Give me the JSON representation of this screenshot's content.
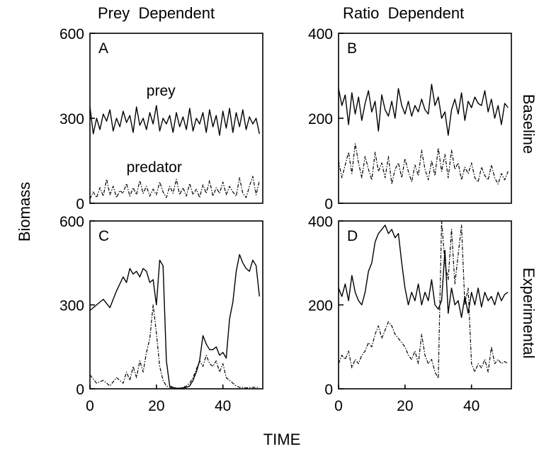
{
  "figure": {
    "column_titles": [
      "Prey  Dependent",
      "Ratio  Dependent"
    ],
    "row_labels": [
      "Baseline",
      "Experimental"
    ],
    "ylabel": "Biomass",
    "xlabel": "TIME"
  },
  "chart_data": [
    {
      "type": "line",
      "panel": "A",
      "ylim": [
        0,
        600
      ],
      "xlim": [
        0,
        52
      ],
      "yticks": [
        "0",
        "300",
        "600"
      ],
      "xticks": [],
      "annotations": [
        "prey",
        "predator"
      ],
      "series": [
        {
          "name": "prey",
          "style": "solid",
          "x": [
            0,
            1,
            2,
            3,
            4,
            5,
            6,
            7,
            8,
            9,
            10,
            11,
            12,
            13,
            14,
            15,
            16,
            17,
            18,
            19,
            20,
            21,
            22,
            23,
            24,
            25,
            26,
            27,
            28,
            29,
            30,
            31,
            32,
            33,
            34,
            35,
            36,
            37,
            38,
            39,
            40,
            41,
            42,
            43,
            44,
            45,
            46,
            47,
            48,
            49,
            50,
            51
          ],
          "y": [
            340,
            245,
            300,
            260,
            315,
            290,
            330,
            255,
            300,
            270,
            325,
            285,
            310,
            250,
            340,
            275,
            300,
            260,
            320,
            280,
            345,
            255,
            300,
            280,
            310,
            250,
            320,
            270,
            305,
            260,
            335,
            255,
            300,
            280,
            320,
            250,
            330,
            270,
            310,
            240,
            325,
            265,
            335,
            250,
            320,
            270,
            330,
            260,
            305,
            280,
            300,
            245
          ]
        },
        {
          "name": "predator",
          "style": "dash-dot",
          "x": [
            0,
            1,
            2,
            3,
            4,
            5,
            6,
            7,
            8,
            9,
            10,
            11,
            12,
            13,
            14,
            15,
            16,
            17,
            18,
            19,
            20,
            21,
            22,
            23,
            24,
            25,
            26,
            27,
            28,
            29,
            30,
            31,
            32,
            33,
            34,
            35,
            36,
            37,
            38,
            39,
            40,
            41,
            42,
            43,
            44,
            45,
            46,
            47,
            48,
            49,
            50,
            51
          ],
          "y": [
            15,
            40,
            20,
            55,
            25,
            85,
            30,
            60,
            20,
            45,
            35,
            70,
            25,
            55,
            30,
            80,
            35,
            60,
            25,
            50,
            30,
            75,
            40,
            20,
            60,
            35,
            85,
            30,
            55,
            25,
            70,
            30,
            50,
            20,
            65,
            35,
            80,
            25,
            55,
            35,
            75,
            30,
            60,
            40,
            25,
            90,
            35,
            20,
            60,
            95,
            30,
            80
          ]
        }
      ]
    },
    {
      "type": "line",
      "panel": "B",
      "ylim": [
        0,
        400
      ],
      "xlim": [
        0,
        52
      ],
      "yticks": [
        "0",
        "200",
        "400"
      ],
      "xticks": [],
      "series": [
        {
          "name": "prey",
          "style": "solid",
          "x": [
            0,
            1,
            2,
            3,
            4,
            5,
            6,
            7,
            8,
            9,
            10,
            11,
            12,
            13,
            14,
            15,
            16,
            17,
            18,
            19,
            20,
            21,
            22,
            23,
            24,
            25,
            26,
            27,
            28,
            29,
            30,
            31,
            32,
            33,
            34,
            35,
            36,
            37,
            38,
            39,
            40,
            41,
            42,
            43,
            44,
            45,
            46,
            47,
            48,
            49,
            50,
            51
          ],
          "y": [
            270,
            230,
            255,
            185,
            260,
            210,
            250,
            195,
            235,
            265,
            215,
            240,
            170,
            255,
            220,
            205,
            240,
            200,
            270,
            230,
            210,
            240,
            205,
            230,
            215,
            245,
            220,
            210,
            280,
            230,
            250,
            200,
            215,
            160,
            220,
            245,
            210,
            260,
            195,
            240,
            225,
            250,
            235,
            230,
            265,
            215,
            245,
            200,
            230,
            185,
            235,
            225
          ]
        },
        {
          "name": "predator",
          "style": "dash-dot",
          "x": [
            0,
            1,
            2,
            3,
            4,
            5,
            6,
            7,
            8,
            9,
            10,
            11,
            12,
            13,
            14,
            15,
            16,
            17,
            18,
            19,
            20,
            21,
            22,
            23,
            24,
            25,
            26,
            27,
            28,
            29,
            30,
            31,
            32,
            33,
            34,
            35,
            36,
            37,
            38,
            39,
            40,
            41,
            42,
            43,
            44,
            45,
            46,
            47,
            48,
            49,
            50,
            51
          ],
          "y": [
            100,
            60,
            90,
            120,
            70,
            140,
            95,
            60,
            110,
            80,
            55,
            120,
            75,
            95,
            60,
            110,
            45,
            80,
            95,
            60,
            105,
            75,
            50,
            90,
            65,
            125,
            80,
            55,
            100,
            65,
            130,
            75,
            115,
            60,
            125,
            80,
            95,
            55,
            85,
            70,
            95,
            60,
            50,
            85,
            65,
            55,
            90,
            60,
            45,
            70,
            55,
            75
          ]
        }
      ]
    },
    {
      "type": "line",
      "panel": "C",
      "ylim": [
        0,
        600
      ],
      "xlim": [
        0,
        52
      ],
      "yticks": [
        "0",
        "300",
        "600"
      ],
      "xticks": [
        "0",
        "20",
        "40"
      ],
      "series": [
        {
          "name": "prey",
          "style": "solid",
          "x": [
            0,
            2,
            4,
            6,
            8,
            10,
            11,
            12,
            13,
            14,
            15,
            16,
            17,
            18,
            19,
            20,
            21,
            22,
            23,
            24,
            25,
            26,
            27,
            28,
            29,
            30,
            31,
            32,
            33,
            34,
            35,
            36,
            37,
            38,
            39,
            40,
            41,
            42,
            43,
            44,
            45,
            46,
            47,
            48,
            49,
            50,
            51
          ],
          "y": [
            280,
            300,
            320,
            290,
            350,
            400,
            380,
            430,
            410,
            420,
            400,
            430,
            420,
            380,
            390,
            300,
            460,
            440,
            100,
            10,
            5,
            2,
            2,
            3,
            5,
            10,
            30,
            60,
            100,
            190,
            160,
            140,
            140,
            150,
            120,
            130,
            110,
            250,
            310,
            420,
            480,
            450,
            430,
            420,
            460,
            440,
            330
          ]
        },
        {
          "name": "predator",
          "style": "dash-dot",
          "x": [
            0,
            2,
            4,
            6,
            8,
            10,
            11,
            12,
            13,
            14,
            15,
            16,
            17,
            18,
            19,
            20,
            21,
            22,
            23,
            24,
            25,
            26,
            27,
            28,
            29,
            30,
            31,
            32,
            33,
            34,
            35,
            36,
            37,
            38,
            39,
            40,
            41,
            42,
            43,
            44,
            45,
            46,
            47,
            48,
            49,
            50,
            51
          ],
          "y": [
            50,
            20,
            30,
            10,
            40,
            20,
            60,
            30,
            80,
            40,
            100,
            60,
            130,
            180,
            300,
            200,
            80,
            30,
            10,
            5,
            3,
            2,
            2,
            5,
            10,
            20,
            40,
            70,
            100,
            80,
            120,
            90,
            80,
            100,
            60,
            90,
            40,
            30,
            20,
            10,
            5,
            5,
            3,
            5,
            5,
            5,
            5
          ]
        }
      ]
    },
    {
      "type": "line",
      "panel": "D",
      "ylim": [
        0,
        400
      ],
      "xlim": [
        0,
        52
      ],
      "yticks": [
        "0",
        "200",
        "400"
      ],
      "xticks": [
        "0",
        "20",
        "40"
      ],
      "series": [
        {
          "name": "prey",
          "style": "solid",
          "x": [
            0,
            1,
            2,
            3,
            4,
            5,
            6,
            7,
            8,
            9,
            10,
            11,
            12,
            13,
            14,
            15,
            16,
            17,
            18,
            19,
            20,
            21,
            22,
            23,
            24,
            25,
            26,
            27,
            28,
            29,
            30,
            31,
            32,
            33,
            34,
            35,
            36,
            37,
            38,
            39,
            40,
            41,
            42,
            43,
            44,
            45,
            46,
            47,
            48,
            49,
            50,
            51
          ],
          "y": [
            240,
            220,
            250,
            210,
            270,
            230,
            210,
            200,
            230,
            280,
            300,
            350,
            370,
            380,
            390,
            370,
            380,
            360,
            370,
            300,
            240,
            200,
            230,
            210,
            250,
            200,
            230,
            210,
            260,
            200,
            190,
            210,
            330,
            180,
            240,
            200,
            210,
            170,
            220,
            180,
            230,
            200,
            240,
            195,
            230,
            210,
            220,
            200,
            230,
            210,
            225,
            230
          ]
        },
        {
          "name": "predator",
          "style": "dash-dot",
          "x": [
            0,
            1,
            2,
            3,
            4,
            5,
            6,
            7,
            8,
            9,
            10,
            11,
            12,
            13,
            14,
            15,
            16,
            17,
            18,
            19,
            20,
            21,
            22,
            23,
            24,
            25,
            26,
            27,
            28,
            29,
            30,
            31,
            32,
            33,
            34,
            35,
            36,
            37,
            38,
            39,
            40,
            41,
            42,
            43,
            44,
            45,
            46,
            47,
            48,
            49,
            50,
            51
          ],
          "y": [
            60,
            80,
            70,
            90,
            50,
            70,
            60,
            80,
            90,
            110,
            100,
            130,
            150,
            120,
            140,
            160,
            150,
            130,
            120,
            110,
            100,
            80,
            70,
            90,
            60,
            130,
            80,
            60,
            70,
            40,
            25,
            400,
            300,
            260,
            380,
            250,
            320,
            390,
            200,
            240,
            60,
            40,
            60,
            50,
            70,
            40,
            100,
            60,
            70,
            60,
            65,
            60
          ]
        }
      ]
    }
  ]
}
